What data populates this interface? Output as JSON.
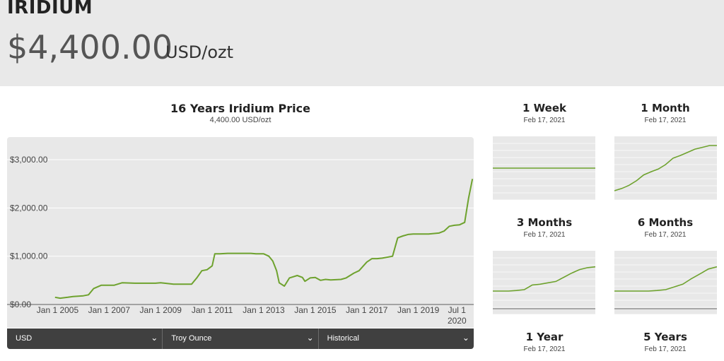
{
  "header": {
    "metal": "IRIDIUM",
    "price": "$4,400.00",
    "unit": "USD/ozt"
  },
  "main_chart": {
    "title": "16 Years Iridium Price",
    "subtitle": "4,400.00 USD/ozt"
  },
  "controls": {
    "currency": "USD",
    "weight": "Troy Ounce",
    "range": "Historical"
  },
  "mini_charts": [
    {
      "title": "1 Week",
      "date": "Feb 17, 2021"
    },
    {
      "title": "1 Month",
      "date": "Feb 17, 2021"
    },
    {
      "title": "3 Months",
      "date": "Feb 17, 2021"
    },
    {
      "title": "6 Months",
      "date": "Feb 17, 2021"
    },
    {
      "title": "1 Year",
      "date": "Feb 17, 2021"
    },
    {
      "title": "5 Years",
      "date": "Feb 17, 2021"
    }
  ],
  "chart_data": {
    "type": "line",
    "line_color": "#6ea22e",
    "ylim": [
      0,
      3000
    ],
    "yticks": [
      0,
      1000,
      2000,
      3000
    ],
    "ytick_labels": [
      "$0.00",
      "$1,000.00",
      "$2,000.00",
      "$3,000.00"
    ],
    "xticks": [
      2005,
      2007,
      2009,
      2011,
      2013,
      2015,
      2017,
      2019,
      2020.5
    ],
    "xtick_labels": [
      "Jan 1 2005",
      "Jan 1 2007",
      "Jan 1 2009",
      "Jan 1 2011",
      "Jan 1 2013",
      "Jan 1 2015",
      "Jan 1 2017",
      "Jan 1 2019",
      "Jul 1 2020"
    ],
    "xlim": [
      2004.85,
      2021.15
    ],
    "x": [
      2004.9,
      2005.1,
      2005.4,
      2005.6,
      2006.0,
      2006.2,
      2006.4,
      2006.7,
      2007.0,
      2007.2,
      2007.5,
      2008.0,
      2008.5,
      2008.8,
      2009.0,
      2009.5,
      2010.0,
      2010.2,
      2010.4,
      2010.6,
      2010.8,
      2011.0,
      2011.1,
      2011.3,
      2011.6,
      2012.0,
      2012.5,
      2012.7,
      2013.0,
      2013.2,
      2013.35,
      2013.5,
      2013.6,
      2013.8,
      2014.0,
      2014.3,
      2014.5,
      2014.6,
      2014.8,
      2015.0,
      2015.2,
      2015.4,
      2015.6,
      2016.0,
      2016.2,
      2016.5,
      2016.7,
      2017.0,
      2017.2,
      2017.4,
      2017.6,
      2018.0,
      2018.2,
      2018.4,
      2018.6,
      2018.8,
      2019.0,
      2019.4,
      2019.8,
      2020.0,
      2020.2,
      2020.4,
      2020.6,
      2020.8,
      2020.95,
      2021.1
    ],
    "y": [
      150,
      130,
      150,
      165,
      180,
      200,
      330,
      400,
      400,
      400,
      450,
      440,
      440,
      440,
      450,
      420,
      420,
      420,
      550,
      700,
      720,
      800,
      1050,
      1050,
      1060,
      1060,
      1060,
      1050,
      1050,
      1000,
      900,
      700,
      450,
      380,
      550,
      600,
      560,
      480,
      550,
      560,
      500,
      520,
      510,
      520,
      550,
      650,
      700,
      880,
      950,
      950,
      960,
      1000,
      1380,
      1420,
      1450,
      1460,
      1460,
      1460,
      1480,
      1520,
      1620,
      1640,
      1650,
      1700,
      2200,
      2600
    ]
  },
  "mini_series": [
    [
      2850,
      2850,
      2850,
      2850,
      2850,
      2850,
      2850,
      2850
    ],
    [
      0.0,
      0.05,
      0.12,
      0.22,
      0.35,
      0.42,
      0.48,
      0.58,
      0.72,
      0.78,
      0.85,
      0.92,
      0.96,
      1.0,
      1.0
    ],
    [
      0.0,
      0.0,
      0.0,
      0.02,
      0.05,
      0.22,
      0.25,
      0.3,
      0.35,
      0.5,
      0.65,
      0.78,
      0.85,
      0.88
    ],
    [
      0.0,
      0.0,
      0.0,
      0.0,
      0.0,
      0.02,
      0.05,
      0.15,
      0.25,
      0.45,
      0.62,
      0.8,
      0.88
    ]
  ]
}
